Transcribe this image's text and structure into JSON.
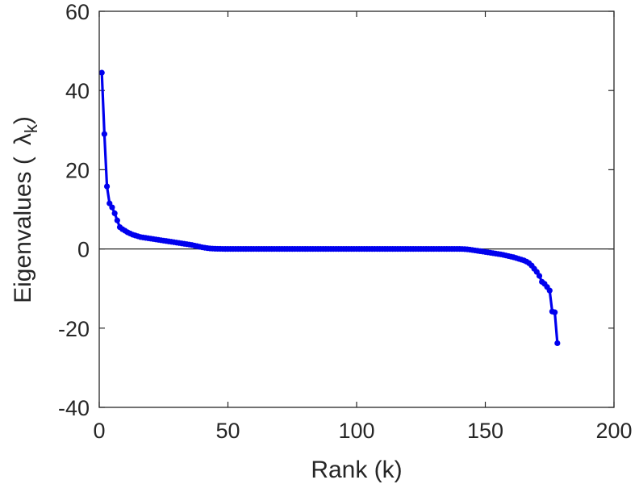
{
  "chart_data": {
    "type": "line",
    "title": "",
    "xlabel": "Rank (k)",
    "ylabel": {
      "prefix": "Eigenvalues (",
      "symbol": "λ",
      "subscript": "k",
      "suffix": ")"
    },
    "xlim": [
      0,
      200
    ],
    "ylim": [
      -40,
      60
    ],
    "xticks": [
      0,
      50,
      100,
      150,
      200
    ],
    "yticks": [
      -40,
      -20,
      0,
      20,
      40,
      60
    ],
    "xtick_labels": [
      "0",
      "50",
      "100",
      "150",
      "200"
    ],
    "ytick_labels": [
      "-40",
      "-20",
      "0",
      "20",
      "40",
      "60"
    ],
    "grid": false,
    "zero_line": true,
    "legend": "none",
    "series": [
      {
        "color": "#0000ee",
        "marker": "circle",
        "x_start": 1,
        "x_step": 1,
        "values": [
          44.5,
          29.0,
          15.8,
          11.5,
          10.5,
          9.0,
          7.2,
          5.5,
          5.0,
          4.6,
          4.2,
          3.9,
          3.6,
          3.4,
          3.2,
          3.0,
          2.9,
          2.8,
          2.7,
          2.6,
          2.5,
          2.4,
          2.3,
          2.2,
          2.1,
          2.0,
          1.9,
          1.8,
          1.7,
          1.6,
          1.5,
          1.4,
          1.3,
          1.2,
          1.1,
          1.0,
          0.85,
          0.7,
          0.55,
          0.4,
          0.3,
          0.2,
          0.12,
          0.08,
          0.05,
          0.03,
          0.02,
          0.01,
          0.0,
          0.0,
          0.0,
          0.0,
          0.0,
          0.0,
          0.0,
          0.0,
          0.0,
          0.0,
          0.0,
          0.0,
          0.0,
          0.0,
          0.0,
          0.0,
          0.0,
          0.0,
          0.0,
          0.0,
          0.0,
          0.0,
          0.0,
          0.0,
          0.0,
          0.0,
          0.0,
          0.0,
          0.0,
          0.0,
          0.0,
          0.0,
          0.0,
          0.0,
          0.0,
          0.0,
          0.0,
          0.0,
          0.0,
          0.0,
          0.0,
          0.0,
          0.0,
          0.0,
          0.0,
          0.0,
          0.0,
          0.0,
          0.0,
          0.0,
          0.0,
          0.0,
          0.0,
          0.0,
          0.0,
          0.0,
          0.0,
          0.0,
          0.0,
          0.0,
          0.0,
          0.0,
          0.0,
          0.0,
          0.0,
          0.0,
          0.0,
          0.0,
          0.0,
          0.0,
          0.0,
          0.0,
          0.0,
          0.0,
          0.0,
          0.0,
          0.0,
          0.0,
          0.0,
          0.0,
          0.0,
          0.0,
          0.0,
          0.0,
          0.0,
          0.0,
          0.0,
          0.0,
          0.0,
          0.0,
          0.0,
          0.0,
          -0.02,
          -0.05,
          -0.1,
          -0.18,
          -0.27,
          -0.37,
          -0.47,
          -0.57,
          -0.67,
          -0.77,
          -0.87,
          -0.97,
          -1.07,
          -1.17,
          -1.27,
          -1.37,
          -1.5,
          -1.65,
          -1.8,
          -1.95,
          -2.1,
          -2.3,
          -2.5,
          -2.7,
          -2.9,
          -3.2,
          -3.6,
          -4.2,
          -5.0,
          -5.8,
          -6.8,
          -8.3,
          -8.8,
          -9.6,
          -10.5,
          -15.8,
          -16.0,
          -23.8
        ]
      }
    ]
  }
}
